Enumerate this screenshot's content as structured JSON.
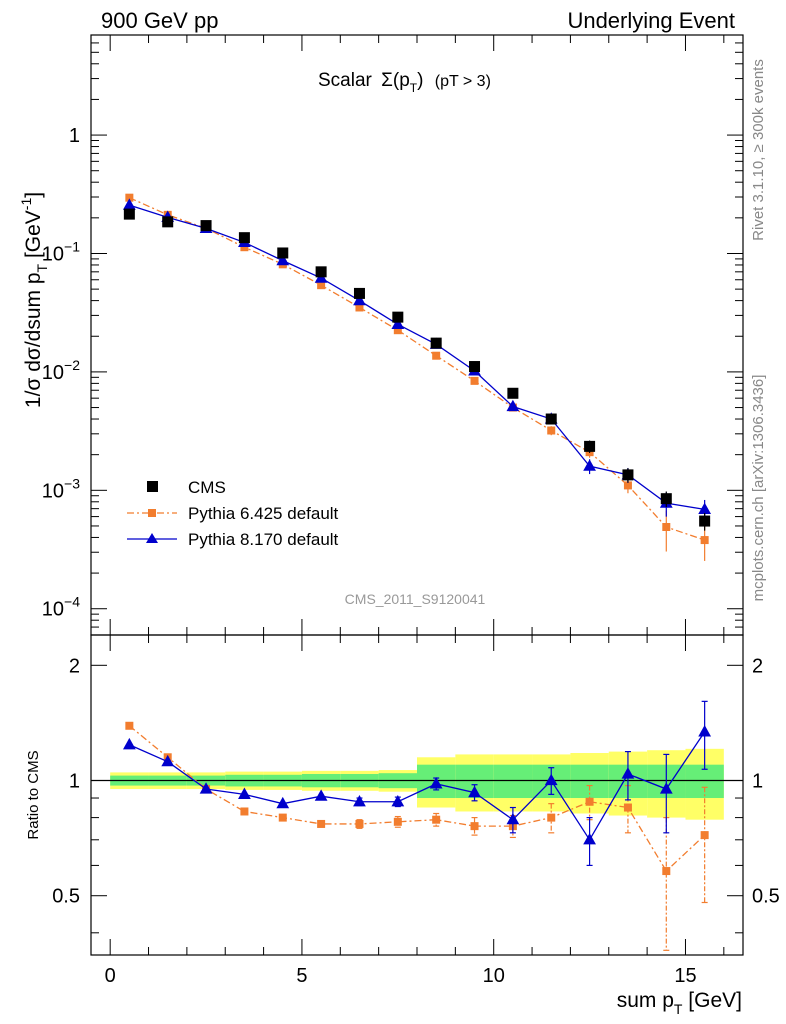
{
  "header": {
    "left": "900 GeV pp",
    "right": "Underlying Event"
  },
  "side_labels": {
    "rivet": "Rivet 3.1.10, ≥ 300k events",
    "mcplots": "mcplots.cern.ch [arXiv:1306.3436]"
  },
  "chart_data": {
    "type": "scatter",
    "title": "Scalar Σ(p_T) (pT > 3)",
    "title_parts": {
      "scalar": "Scalar",
      "sigma": "Σ(p",
      "sub": "T",
      "close": ")",
      "cut": "(pT >  3)"
    },
    "analysis_id": "CMS_2011_S9120041",
    "xlabel": "sum p_T [GeV]",
    "xlabel_parts": {
      "main": "sum p",
      "sub": "T",
      "unit": " [GeV]"
    },
    "ylabel": "1/σ dσ/dsum p_T [GeV^-1]",
    "ylabel_parts": {
      "main": "1/σ dσ/dsum p",
      "sub": "T",
      "unit": " [GeV",
      "sup": "-1",
      "close": "]"
    },
    "ratio_ylabel": "Ratio to CMS",
    "xlim": [
      -0.5,
      16.5
    ],
    "ylim": [
      6e-05,
      7
    ],
    "ratio_ylim": [
      0.35,
      2.4
    ],
    "x_ticks": [
      0,
      5,
      10,
      15
    ],
    "x_tick_labels": [
      "0",
      "5",
      "10",
      "15"
    ],
    "y_major_ticks": [
      0.0001,
      0.001,
      0.01,
      0.1,
      1
    ],
    "y_tick_labels": [
      {
        "base": "10",
        "exp": "−4"
      },
      {
        "base": "10",
        "exp": "−3"
      },
      {
        "base": "10",
        "exp": "−2"
      },
      {
        "base": "10",
        "exp": "−1"
      },
      {
        "base": "1",
        "exp": ""
      }
    ],
    "ratio_ticks": [
      0.5,
      1,
      2
    ],
    "ratio_tick_labels": [
      "0.5",
      "1",
      "2"
    ],
    "x": [
      0.5,
      1.5,
      2.5,
      3.5,
      4.5,
      5.5,
      6.5,
      7.5,
      8.5,
      9.5,
      10.5,
      11.5,
      12.5,
      13.5,
      14.5,
      15.5
    ],
    "bin_edges": [
      0,
      1,
      2,
      3,
      4,
      5,
      6,
      7,
      8,
      9,
      10,
      11,
      12,
      13,
      14,
      15,
      16
    ],
    "series": [
      {
        "name": "CMS",
        "role": "data",
        "color": "#000000",
        "marker": "square",
        "values": [
          0.215,
          0.185,
          0.172,
          0.136,
          0.101,
          0.07,
          0.046,
          0.029,
          0.0175,
          0.0111,
          0.0066,
          0.004,
          0.00235,
          0.00135,
          0.00085,
          0.00055
        ]
      },
      {
        "name": "Pythia 6.425 default",
        "role": "mc",
        "color": "#f27d2e",
        "marker": "square",
        "line": "dashdot",
        "values": [
          0.296,
          0.212,
          0.163,
          0.113,
          0.081,
          0.054,
          0.035,
          0.0225,
          0.0137,
          0.0084,
          0.005,
          0.0032,
          0.0021,
          0.0011,
          0.00049,
          0.00038
        ],
        "ratio": [
          1.39,
          1.15,
          0.95,
          0.83,
          0.8,
          0.77,
          0.77,
          0.78,
          0.79,
          0.76,
          0.76,
          0.8,
          0.88,
          0.85,
          0.58,
          0.72
        ],
        "ratio_err": [
          0.01,
          0.01,
          0.01,
          0.01,
          0.01,
          0.015,
          0.02,
          0.025,
          0.03,
          0.04,
          0.05,
          0.07,
          0.09,
          0.12,
          0.22,
          0.24
        ]
      },
      {
        "name": "Pythia 8.170 default",
        "role": "mc",
        "color": "#0000cc",
        "marker": "triangle",
        "line": "solid",
        "values": [
          0.256,
          0.202,
          0.163,
          0.124,
          0.087,
          0.062,
          0.04,
          0.0252,
          0.0171,
          0.0102,
          0.0051,
          0.004,
          0.0016,
          0.00135,
          0.00078,
          0.00069
        ],
        "ratio": [
          1.24,
          1.12,
          0.95,
          0.92,
          0.87,
          0.91,
          0.88,
          0.88,
          0.98,
          0.93,
          0.79,
          1.0,
          0.7,
          1.04,
          0.95,
          1.34
        ],
        "ratio_err": [
          0.01,
          0.01,
          0.01,
          0.01,
          0.01,
          0.015,
          0.02,
          0.025,
          0.035,
          0.045,
          0.06,
          0.08,
          0.1,
          0.15,
          0.22,
          0.27
        ]
      }
    ],
    "cms_rel_err": [
      0.04,
      0.04,
      0.04,
      0.04,
      0.04,
      0.04,
      0.045,
      0.05,
      0.06,
      0.07,
      0.08,
      0.1,
      0.12,
      0.14,
      0.15,
      0.17
    ],
    "band_stat": [
      0.03,
      0.03,
      0.03,
      0.035,
      0.035,
      0.04,
      0.04,
      0.045,
      0.1,
      0.1,
      0.1,
      0.1,
      0.1,
      0.1,
      0.1,
      0.1
    ],
    "band_total": [
      0.05,
      0.05,
      0.05,
      0.055,
      0.055,
      0.06,
      0.06,
      0.065,
      0.15,
      0.17,
      0.17,
      0.17,
      0.18,
      0.19,
      0.2,
      0.21
    ],
    "band_colors": {
      "total": "#ffff66",
      "stat": "#66ee77"
    },
    "legend_position": "bottom-left"
  }
}
